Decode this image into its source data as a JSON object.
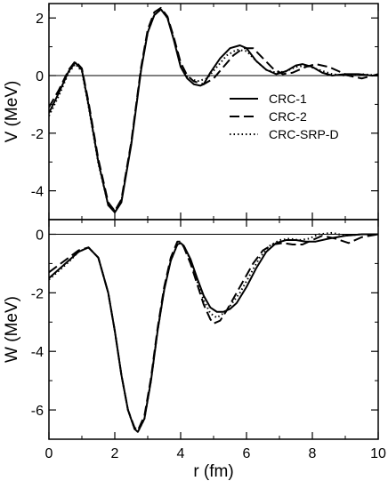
{
  "chart_data": {
    "type": "line",
    "xlabel": "r (fm)",
    "xlim": [
      0,
      10
    ],
    "xticks": [
      0,
      2,
      4,
      6,
      8,
      10
    ],
    "legend": {
      "placement": "right",
      "entries": [
        {
          "name": "CRC-1",
          "style": "solid"
        },
        {
          "name": "CRC-2",
          "style": "dashed"
        },
        {
          "name": "CRC-SRP-D",
          "style": "dotted"
        }
      ]
    },
    "panels": [
      {
        "id": "V",
        "ylabel": "V (MeV)",
        "ylim": [
          -5,
          2.5
        ],
        "yticks": [
          -4,
          -2,
          0,
          2
        ],
        "zero_line": true,
        "series": [
          {
            "name": "CRC-1",
            "style": "solid",
            "x": [
              0,
              0.3,
              0.6,
              0.8,
              1.0,
              1.2,
              1.5,
              1.8,
              2.0,
              2.2,
              2.5,
              2.8,
              3.0,
              3.2,
              3.4,
              3.6,
              3.8,
              4.0,
              4.2,
              4.4,
              4.6,
              4.7,
              4.9,
              5.2,
              5.5,
              5.8,
              6.0,
              6.3,
              6.6,
              6.9,
              7.2,
              7.5,
              7.7,
              8.0,
              8.3,
              8.6,
              9.0,
              9.4,
              9.8,
              10.0
            ],
            "y": [
              -1.3,
              -0.6,
              0.15,
              0.45,
              0.2,
              -1.0,
              -3.0,
              -4.5,
              -4.75,
              -4.4,
              -2.4,
              0.2,
              1.5,
              2.1,
              2.3,
              2.0,
              1.2,
              0.3,
              -0.1,
              -0.3,
              -0.35,
              -0.3,
              0.1,
              0.6,
              0.95,
              1.05,
              0.95,
              0.5,
              0.2,
              0.05,
              0.15,
              0.35,
              0.4,
              0.3,
              0.1,
              0.0,
              0.05,
              0.05,
              0.0,
              0.0
            ]
          },
          {
            "name": "CRC-2",
            "style": "dashed",
            "x": [
              0,
              0.3,
              0.6,
              0.8,
              1.0,
              1.2,
              1.5,
              1.8,
              2.0,
              2.2,
              2.5,
              2.8,
              3.0,
              3.2,
              3.4,
              3.6,
              3.8,
              4.0,
              4.2,
              4.4,
              4.7,
              5.0,
              5.3,
              5.6,
              5.9,
              6.2,
              6.5,
              6.8,
              7.1,
              7.4,
              7.8,
              8.1,
              8.5,
              8.8,
              9.1,
              9.5,
              10.0
            ],
            "y": [
              -1.1,
              -0.5,
              0.2,
              0.5,
              0.25,
              -0.9,
              -2.9,
              -4.4,
              -4.7,
              -4.3,
              -2.3,
              0.3,
              1.6,
              2.2,
              2.35,
              2.05,
              1.3,
              0.45,
              0.0,
              -0.2,
              -0.3,
              -0.1,
              0.3,
              0.7,
              0.95,
              0.95,
              0.6,
              0.25,
              0.05,
              0.1,
              0.3,
              0.4,
              0.3,
              0.15,
              0.0,
              -0.1,
              0.05
            ]
          },
          {
            "name": "CRC-SRP-D",
            "style": "dotted",
            "x": [
              0,
              0.3,
              0.6,
              0.8,
              1.0,
              1.2,
              1.5,
              1.8,
              2.0,
              2.2,
              2.5,
              2.8,
              3.0,
              3.2,
              3.4,
              3.6,
              3.8,
              4.0,
              4.2,
              4.5,
              4.8,
              5.1,
              5.4,
              5.7,
              6.0,
              6.3,
              6.6,
              6.9,
              7.2,
              7.5,
              7.8,
              8.2,
              8.6,
              9.0,
              9.5,
              10.0
            ],
            "y": [
              -1.4,
              -0.7,
              0.1,
              0.4,
              0.15,
              -1.05,
              -3.05,
              -4.5,
              -4.7,
              -4.35,
              -2.35,
              0.25,
              1.5,
              2.1,
              2.3,
              2.0,
              1.25,
              0.35,
              -0.05,
              -0.2,
              -0.1,
              0.3,
              0.7,
              0.9,
              0.85,
              0.5,
              0.2,
              0.1,
              0.15,
              0.3,
              0.35,
              0.2,
              0.05,
              0.0,
              0.05,
              0.0
            ]
          }
        ]
      },
      {
        "id": "W",
        "ylabel": "W (MeV)",
        "ylim": [
          -7,
          0.5
        ],
        "yticks": [
          -6,
          -4,
          -2,
          0
        ],
        "zero_line": true,
        "series": [
          {
            "name": "CRC-1",
            "style": "solid",
            "x": [
              0,
              0.3,
              0.6,
              0.9,
              1.2,
              1.5,
              1.8,
              2.0,
              2.2,
              2.4,
              2.6,
              2.7,
              2.9,
              3.1,
              3.3,
              3.5,
              3.7,
              3.9,
              4.0,
              4.1,
              4.3,
              4.5,
              4.7,
              4.9,
              5.1,
              5.3,
              5.5,
              5.7,
              6.0,
              6.3,
              6.6,
              6.9,
              7.2,
              7.5,
              7.8,
              8.1,
              8.5,
              9.0,
              9.5,
              10.0
            ],
            "y": [
              -1.5,
              -1.2,
              -0.9,
              -0.6,
              -0.45,
              -0.8,
              -2.0,
              -3.3,
              -4.8,
              -6.0,
              -6.65,
              -6.75,
              -6.3,
              -5.0,
              -3.3,
              -1.9,
              -0.9,
              -0.35,
              -0.3,
              -0.4,
              -0.85,
              -1.5,
              -2.1,
              -2.5,
              -2.65,
              -2.65,
              -2.55,
              -2.35,
              -1.8,
              -1.15,
              -0.6,
              -0.3,
              -0.2,
              -0.2,
              -0.25,
              -0.25,
              -0.15,
              -0.05,
              0.0,
              0.0
            ]
          },
          {
            "name": "CRC-2",
            "style": "dashed",
            "x": [
              0,
              0.3,
              0.6,
              0.9,
              1.2,
              1.5,
              1.8,
              2.0,
              2.2,
              2.4,
              2.6,
              2.7,
              2.9,
              3.1,
              3.3,
              3.5,
              3.7,
              3.9,
              4.0,
              4.1,
              4.3,
              4.5,
              4.7,
              4.9,
              5.0,
              5.2,
              5.4,
              5.6,
              5.9,
              6.2,
              6.5,
              6.8,
              7.1,
              7.4,
              7.7,
              8.0,
              8.3,
              8.7,
              9.1,
              9.5,
              10.0
            ],
            "y": [
              -1.3,
              -1.05,
              -0.8,
              -0.55,
              -0.45,
              -0.8,
              -2.0,
              -3.3,
              -4.8,
              -6.0,
              -6.6,
              -6.7,
              -6.2,
              -4.9,
              -3.2,
              -1.8,
              -0.8,
              -0.25,
              -0.25,
              -0.45,
              -1.0,
              -1.7,
              -2.4,
              -2.9,
              -3.05,
              -2.95,
              -2.6,
              -2.2,
              -1.6,
              -1.0,
              -0.55,
              -0.35,
              -0.3,
              -0.35,
              -0.35,
              -0.2,
              -0.05,
              -0.15,
              -0.3,
              -0.1,
              0.0
            ]
          },
          {
            "name": "CRC-SRP-D",
            "style": "dotted",
            "x": [
              0,
              0.3,
              0.6,
              0.9,
              1.2,
              1.5,
              1.8,
              2.0,
              2.2,
              2.4,
              2.6,
              2.7,
              2.9,
              3.1,
              3.3,
              3.5,
              3.7,
              3.9,
              4.0,
              4.1,
              4.3,
              4.5,
              4.7,
              4.9,
              5.1,
              5.3,
              5.5,
              5.8,
              6.1,
              6.4,
              6.7,
              7.0,
              7.3,
              7.6,
              7.9,
              8.2,
              8.6,
              9.0,
              9.5,
              10.0
            ],
            "y": [
              -1.55,
              -1.25,
              -0.95,
              -0.6,
              -0.45,
              -0.8,
              -2.0,
              -3.3,
              -4.8,
              -6.0,
              -6.65,
              -6.75,
              -6.3,
              -5.0,
              -3.3,
              -1.9,
              -0.9,
              -0.35,
              -0.3,
              -0.4,
              -0.9,
              -1.6,
              -2.25,
              -2.7,
              -2.85,
              -2.7,
              -2.45,
              -2.0,
              -1.4,
              -0.8,
              -0.4,
              -0.2,
              -0.15,
              -0.2,
              -0.15,
              0.0,
              0.05,
              -0.05,
              0.0,
              0.0
            ]
          }
        ]
      }
    ]
  }
}
